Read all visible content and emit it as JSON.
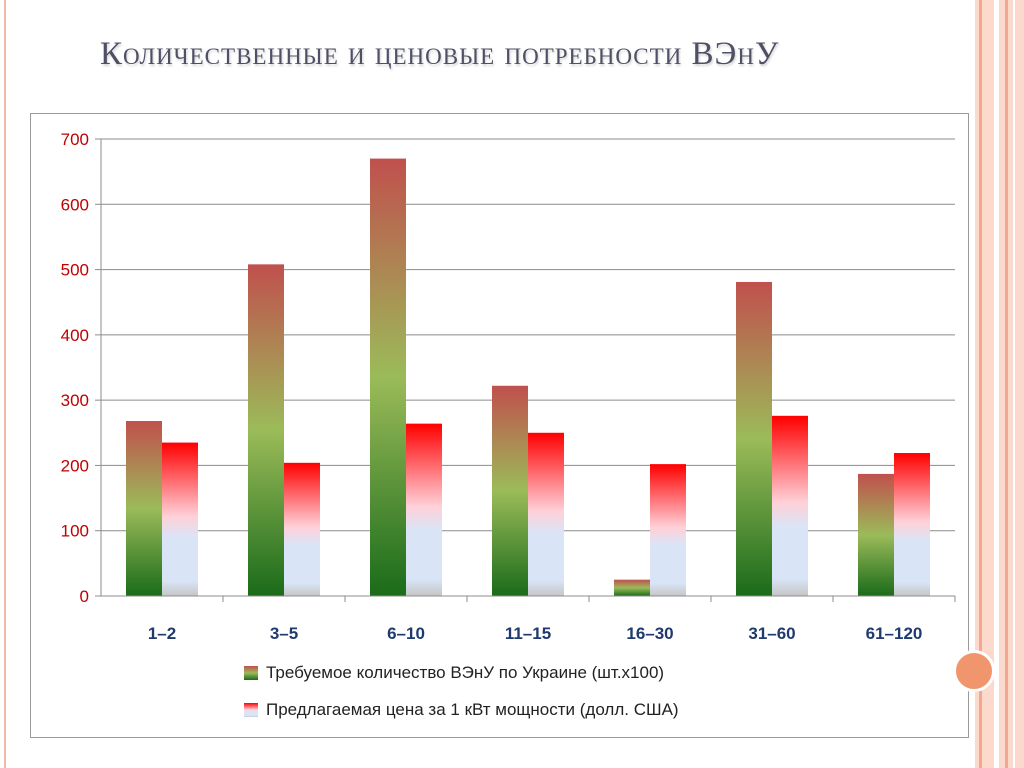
{
  "slide": {
    "title": "Количественные и ценовые потребности ВЭнУ"
  },
  "colors": {
    "series1_top": "#c0504d",
    "series1_mid": "#9bbb59",
    "series1_bottom": "#1a6b1a",
    "series2_top": "#ff0000",
    "series2_mid": "#ffffff",
    "series2_bottom": "#c6d9f1",
    "y_tick": "#c00000",
    "x_tick": "#1f3a6e"
  },
  "chart_data": {
    "type": "bar",
    "categories": [
      "1–2",
      "3–5",
      "6–10",
      "11–15",
      "16–30",
      "31–60",
      "61–120"
    ],
    "series": [
      {
        "name": "Требуемое количество ВЭнУ по Украине (шт.х100)",
        "values": [
          268,
          508,
          670,
          322,
          25,
          481,
          187
        ]
      },
      {
        "name": "Предлагаемая цена за 1 кВт мощности (долл. США)",
        "values": [
          235,
          204,
          264,
          250,
          202,
          276,
          219
        ]
      }
    ],
    "yticks": [
      "0",
      "100",
      "200",
      "300",
      "400",
      "500",
      "600",
      "700"
    ],
    "ylim": [
      0,
      700
    ],
    "grid": true,
    "legend_position": "bottom"
  }
}
